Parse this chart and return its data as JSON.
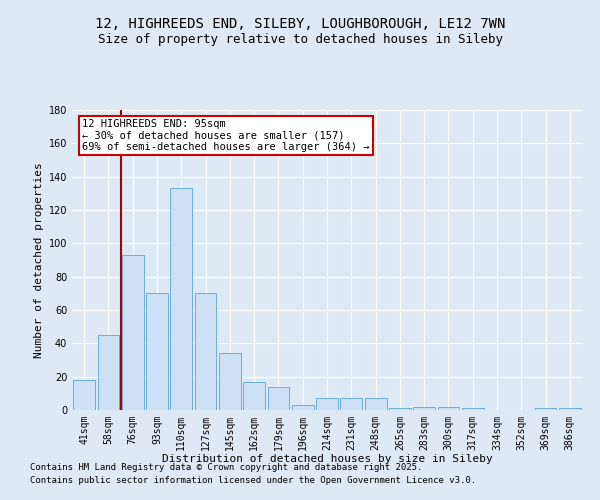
{
  "title_line1": "12, HIGHREEDS END, SILEBY, LOUGHBOROUGH, LE12 7WN",
  "title_line2": "Size of property relative to detached houses in Sileby",
  "xlabel": "Distribution of detached houses by size in Sileby",
  "ylabel": "Number of detached properties",
  "categories": [
    "41sqm",
    "58sqm",
    "76sqm",
    "93sqm",
    "110sqm",
    "127sqm",
    "145sqm",
    "162sqm",
    "179sqm",
    "196sqm",
    "214sqm",
    "231sqm",
    "248sqm",
    "265sqm",
    "283sqm",
    "300sqm",
    "317sqm",
    "334sqm",
    "352sqm",
    "369sqm",
    "386sqm"
  ],
  "values": [
    18,
    45,
    93,
    70,
    133,
    70,
    34,
    17,
    14,
    3,
    7,
    7,
    7,
    1,
    2,
    2,
    1,
    0,
    0,
    1,
    1
  ],
  "bar_color": "#cde0f5",
  "bar_edge_color": "#6aaed6",
  "background_color": "#dde9f5",
  "grid_color": "#ffffff",
  "annotation_text": "12 HIGHREEDS END: 95sqm\n← 30% of detached houses are smaller (157)\n69% of semi-detached houses are larger (364) →",
  "annotation_box_color": "#ffffff",
  "annotation_box_edge": "#cc0000",
  "vline_x": 1.5,
  "vline_color": "#aa0000",
  "ylim": [
    0,
    180
  ],
  "yticks": [
    0,
    20,
    40,
    60,
    80,
    100,
    120,
    140,
    160,
    180
  ],
  "footer1": "Contains HM Land Registry data © Crown copyright and database right 2025.",
  "footer2": "Contains public sector information licensed under the Open Government Licence v3.0.",
  "title_fontsize": 10,
  "subtitle_fontsize": 9,
  "axis_label_fontsize": 8,
  "tick_fontsize": 7,
  "annotation_fontsize": 7.5,
  "footer_fontsize": 6.5
}
